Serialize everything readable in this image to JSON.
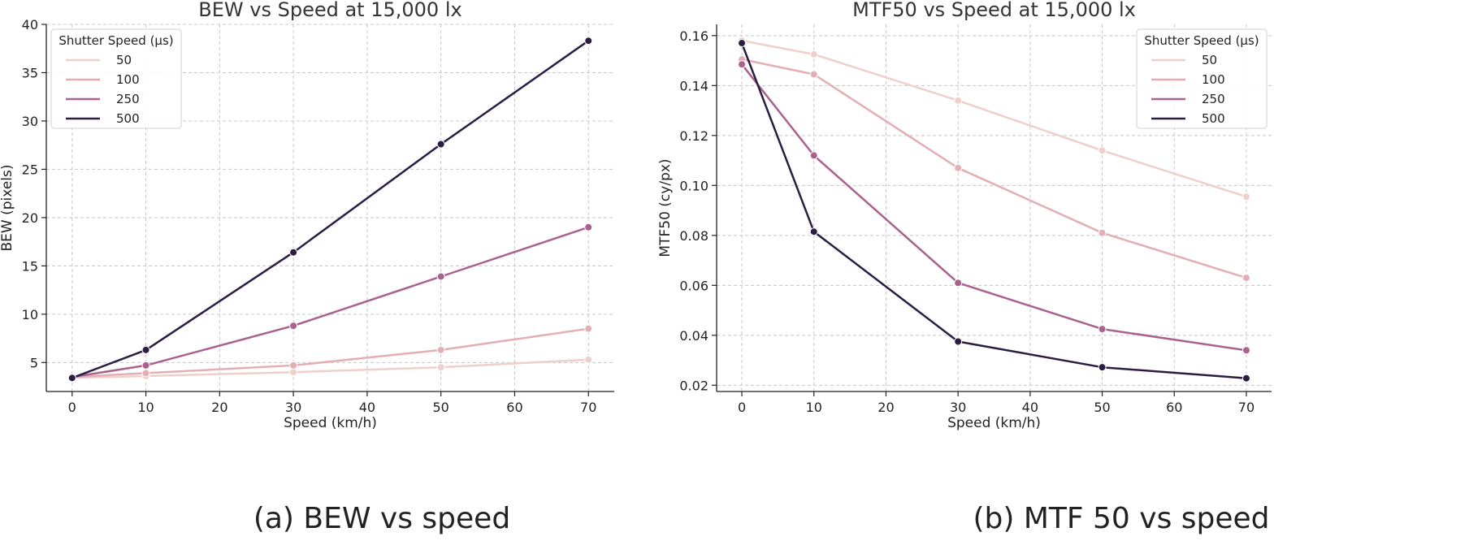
{
  "captions": {
    "a": "(a) BEW vs speed",
    "b": "(b) MTF 50 vs speed"
  },
  "chart_data": [
    {
      "type": "line",
      "title": "BEW vs Speed at 15,000 lx",
      "xlabel": "Speed (km/h)",
      "ylabel": "BEW (pixels)",
      "xlim": [
        -3.5,
        73.5
      ],
      "ylim": [
        2.0,
        40.0
      ],
      "xticks": [
        0,
        10,
        20,
        30,
        40,
        50,
        60,
        70
      ],
      "yticks": [
        5,
        10,
        15,
        20,
        25,
        30,
        35,
        40
      ],
      "ytick_labels": [
        "5",
        "10",
        "15",
        "20",
        "25",
        "30",
        "35",
        "40"
      ],
      "grid": true,
      "legend": {
        "title": "Shutter Speed (µs)",
        "placement": "top-left"
      },
      "x": [
        0,
        10,
        30,
        50,
        70
      ],
      "series": [
        {
          "name": "50",
          "color": "#efcfcb",
          "values": [
            3.4,
            3.6,
            4.0,
            4.5,
            5.3
          ]
        },
        {
          "name": "100",
          "color": "#e3aeb4",
          "values": [
            3.5,
            3.9,
            4.7,
            6.3,
            8.5
          ]
        },
        {
          "name": "250",
          "color": "#a8628d",
          "values": [
            3.5,
            4.7,
            8.8,
            13.9,
            19.0
          ]
        },
        {
          "name": "500",
          "color": "#2b1d42",
          "values": [
            3.4,
            6.3,
            16.4,
            27.6,
            38.3
          ]
        }
      ]
    },
    {
      "type": "line",
      "title": "MTF50 vs Speed at 15,000 lx",
      "xlabel": "Speed (km/h)",
      "ylabel": "MTF50 (cy/px)",
      "xlim": [
        -3.5,
        73.5
      ],
      "ylim": [
        0.0175,
        0.1645
      ],
      "xticks": [
        0,
        10,
        20,
        30,
        40,
        50,
        60,
        70
      ],
      "yticks": [
        0.02,
        0.04,
        0.06,
        0.08,
        0.1,
        0.12,
        0.14,
        0.16
      ],
      "ytick_labels": [
        "0.02",
        "0.04",
        "0.06",
        "0.08",
        "0.10",
        "0.12",
        "0.14",
        "0.16"
      ],
      "grid": true,
      "legend": {
        "title": "Shutter Speed (µs)",
        "placement": "top-right"
      },
      "x": [
        0,
        10,
        30,
        50,
        70
      ],
      "series": [
        {
          "name": "50",
          "color": "#efcfcb",
          "values": [
            0.158,
            0.1525,
            0.134,
            0.114,
            0.0955
          ]
        },
        {
          "name": "100",
          "color": "#e3aeb4",
          "values": [
            0.1505,
            0.1445,
            0.107,
            0.081,
            0.063
          ]
        },
        {
          "name": "250",
          "color": "#a8628d",
          "values": [
            0.1485,
            0.112,
            0.061,
            0.0425,
            0.034
          ]
        },
        {
          "name": "500",
          "color": "#2b1d42",
          "values": [
            0.157,
            0.0815,
            0.0375,
            0.0272,
            0.0228
          ]
        }
      ]
    }
  ]
}
